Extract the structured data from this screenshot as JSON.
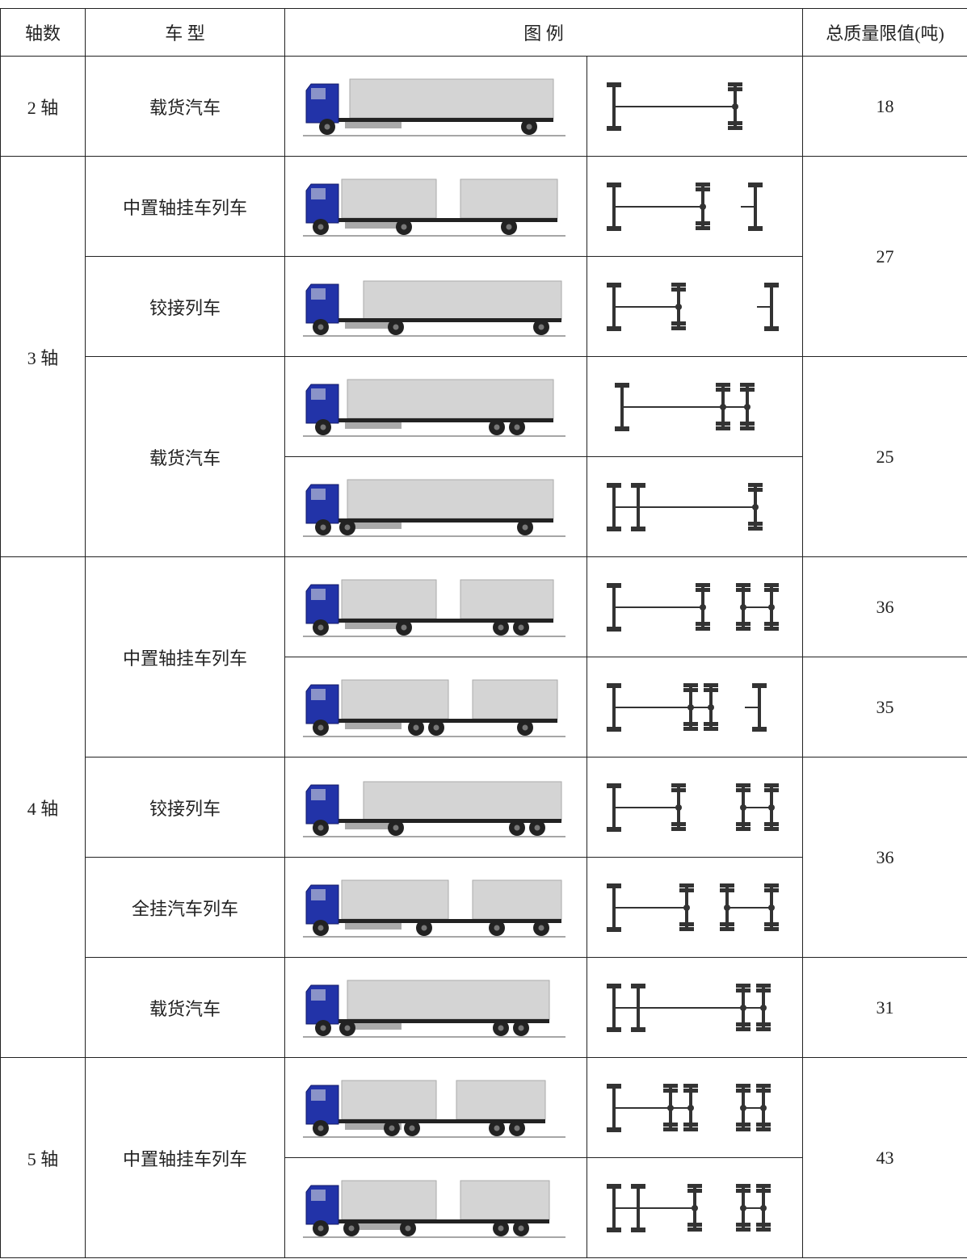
{
  "header": [
    "轴数",
    "车 型",
    "图 例",
    "总质量限值(吨)"
  ],
  "axles": [
    "2 轴",
    "3 轴",
    "4 轴",
    "5 轴"
  ],
  "types": [
    "载货汽车",
    "中置轴挂车列车",
    "铰接列车",
    "载货汽车",
    "中置轴挂车列车",
    "铰接列车",
    "全挂汽车列车",
    "载货汽车",
    "中置轴挂车列车"
  ],
  "limits": [
    18,
    27,
    25,
    36,
    35,
    36,
    31,
    43
  ]
}
